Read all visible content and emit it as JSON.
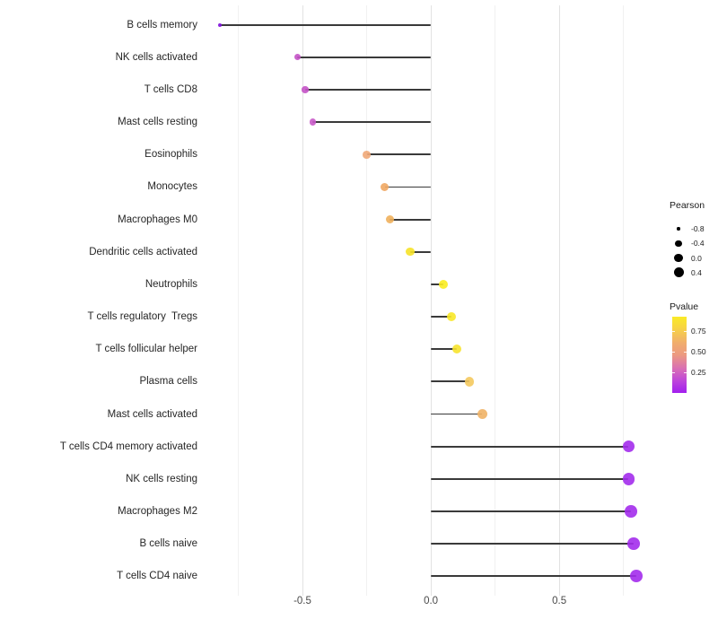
{
  "chart_data": {
    "type": "lollipop",
    "title": "",
    "xlabel": "",
    "ylabel": "",
    "orientation": "horizontal",
    "grid": "vertical-gridlines-only, white background, no axis lines",
    "baseline": 0,
    "xlim": [
      -0.867,
      0.898
    ],
    "x_major_ticks": [
      {
        "value": -0.5,
        "label": "-0.5"
      },
      {
        "value": 0.0,
        "label": "0.0"
      },
      {
        "value": 0.5,
        "label": "0.5"
      }
    ],
    "x_minor_ticks": [
      -0.75,
      -0.25,
      0.25,
      0.75
    ],
    "stem_color": "#3a3a3a",
    "rows": [
      {
        "label": "B cells memory",
        "pearson": -0.82,
        "dot_color": "#7f0edc",
        "dot_d": 4.0
      },
      {
        "label": "NK cells activated",
        "pearson": -0.52,
        "dot_color": "#c453c7",
        "dot_d": 7.2
      },
      {
        "label": "T cells CD8",
        "pearson": -0.49,
        "dot_color": "#c453c7",
        "dot_d": 7.3
      },
      {
        "label": "Mast cells resting",
        "pearson": -0.46,
        "dot_color": "#c95bc9",
        "dot_d": 7.6
      },
      {
        "label": "Eosinophils",
        "pearson": -0.25,
        "dot_color": "#f0a878",
        "dot_d": 8.7
      },
      {
        "label": "Monocytes",
        "pearson": -0.18,
        "dot_color": "#f0a763",
        "dot_d": 9.0
      },
      {
        "label": "Macrophages M0",
        "pearson": -0.16,
        "dot_color": "#f0b05c",
        "dot_d": 9.0
      },
      {
        "label": "Dendritic cells activated",
        "pearson": -0.08,
        "dot_color": "#f6e228",
        "dot_d": 9.4
      },
      {
        "label": "Neutrophils",
        "pearson": 0.05,
        "dot_color": "#faec21",
        "dot_d": 10.0
      },
      {
        "label": "T cells regulatory  Tregs",
        "pearson": 0.08,
        "dot_color": "#f8e828",
        "dot_d": 10.2
      },
      {
        "label": "T cells follicular helper",
        "pearson": 0.1,
        "dot_color": "#f7e32e",
        "dot_d": 10.3
      },
      {
        "label": "Plasma cells",
        "pearson": 0.15,
        "dot_color": "#f4c95e",
        "dot_d": 10.7
      },
      {
        "label": "Mast cells activated",
        "pearson": 0.2,
        "dot_color": "#f0b266",
        "dot_d": 11.0
      },
      {
        "label": "T cells CD4 memory activated",
        "pearson": 0.77,
        "dot_color": "#a32cec",
        "dot_d": 13.4
      },
      {
        "label": "NK cells resting",
        "pearson": 0.77,
        "dot_color": "#a32cec",
        "dot_d": 13.4
      },
      {
        "label": "Macrophages M2",
        "pearson": 0.78,
        "dot_color": "#a32cec",
        "dot_d": 13.5
      },
      {
        "label": "B cells naive",
        "pearson": 0.79,
        "dot_color": "#a32cec",
        "dot_d": 13.6
      },
      {
        "label": "T cells CD4 naive",
        "pearson": 0.8,
        "dot_color": "#a32cec",
        "dot_d": 13.8
      }
    ],
    "legend": {
      "pearson": {
        "title": "Pearson",
        "entries": [
          {
            "label": "-0.8",
            "d": 3.4
          },
          {
            "label": "-0.4",
            "d": 7.3
          },
          {
            "label": "0.0",
            "d": 9.7
          },
          {
            "label": "0.4",
            "d": 11.0
          }
        ]
      },
      "pvalue": {
        "title": "Pvalue",
        "ticks": [
          {
            "label": "0.75",
            "t": 0.19
          },
          {
            "label": "0.50",
            "t": 0.455
          },
          {
            "label": "0.25",
            "t": 0.733
          }
        ],
        "gradient_top_to_bottom": [
          {
            "pos": 0.0,
            "color": "#faeb27"
          },
          {
            "pos": 0.15,
            "color": "#f7d344"
          },
          {
            "pos": 0.35,
            "color": "#f0ac6e"
          },
          {
            "pos": 0.5,
            "color": "#ec9a80"
          },
          {
            "pos": 0.68,
            "color": "#d96fb4"
          },
          {
            "pos": 0.85,
            "color": "#bc43dc"
          },
          {
            "pos": 1.0,
            "color": "#a21fee"
          }
        ]
      }
    }
  }
}
